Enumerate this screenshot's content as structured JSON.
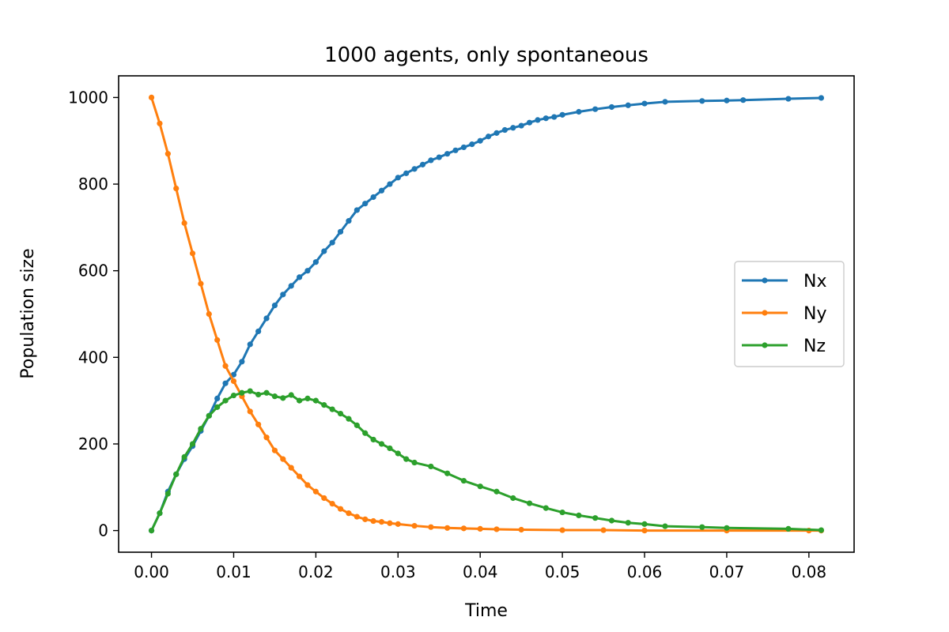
{
  "chart_data": {
    "type": "line",
    "title": "1000 agents, only spontaneous",
    "xlabel": "Time",
    "ylabel": "Population size",
    "xlim": [
      -0.004,
      0.0855
    ],
    "ylim": [
      -50,
      1050
    ],
    "xticks": [
      0.0,
      0.01,
      0.02,
      0.03,
      0.04,
      0.05,
      0.06,
      0.07,
      0.08
    ],
    "xtick_labels": [
      "0.00",
      "0.01",
      "0.02",
      "0.03",
      "0.04",
      "0.05",
      "0.06",
      "0.07",
      "0.08"
    ],
    "yticks": [
      0,
      200,
      400,
      600,
      800,
      1000
    ],
    "ytick_labels": [
      "0",
      "200",
      "400",
      "600",
      "800",
      "1000"
    ],
    "grid": false,
    "legend_position": "center-right",
    "series": [
      {
        "name": "Nx",
        "color": "#1f77b4",
        "x": [
          0.0,
          0.001,
          0.002,
          0.003,
          0.004,
          0.005,
          0.006,
          0.007,
          0.008,
          0.009,
          0.01,
          0.011,
          0.012,
          0.013,
          0.014,
          0.015,
          0.016,
          0.017,
          0.018,
          0.019,
          0.02,
          0.021,
          0.022,
          0.023,
          0.024,
          0.025,
          0.026,
          0.027,
          0.028,
          0.029,
          0.03,
          0.031,
          0.032,
          0.033,
          0.034,
          0.035,
          0.036,
          0.037,
          0.038,
          0.039,
          0.04,
          0.041,
          0.042,
          0.043,
          0.044,
          0.045,
          0.046,
          0.047,
          0.048,
          0.049,
          0.05,
          0.052,
          0.054,
          0.056,
          0.058,
          0.06,
          0.0625,
          0.067,
          0.07,
          0.072,
          0.0775,
          0.0815
        ],
        "y": [
          0,
          40,
          90,
          130,
          165,
          195,
          230,
          265,
          305,
          340,
          360,
          390,
          430,
          460,
          490,
          520,
          545,
          565,
          585,
          600,
          620,
          645,
          665,
          690,
          715,
          740,
          755,
          770,
          785,
          800,
          815,
          825,
          835,
          845,
          855,
          862,
          870,
          878,
          885,
          892,
          900,
          910,
          918,
          925,
          930,
          935,
          942,
          948,
          952,
          955,
          960,
          967,
          973,
          978,
          982,
          986,
          990,
          992,
          993,
          994,
          997,
          999
        ]
      },
      {
        "name": "Ny",
        "color": "#ff7f0e",
        "x": [
          0.0,
          0.001,
          0.002,
          0.003,
          0.004,
          0.005,
          0.006,
          0.007,
          0.008,
          0.009,
          0.01,
          0.011,
          0.012,
          0.013,
          0.014,
          0.015,
          0.016,
          0.017,
          0.018,
          0.019,
          0.02,
          0.021,
          0.022,
          0.023,
          0.024,
          0.025,
          0.026,
          0.027,
          0.028,
          0.029,
          0.03,
          0.032,
          0.034,
          0.036,
          0.038,
          0.04,
          0.042,
          0.045,
          0.05,
          0.055,
          0.06,
          0.07,
          0.08,
          0.0815
        ],
        "y": [
          1000,
          940,
          870,
          790,
          710,
          640,
          570,
          500,
          440,
          380,
          345,
          310,
          275,
          245,
          215,
          185,
          165,
          145,
          125,
          105,
          90,
          75,
          62,
          50,
          40,
          32,
          26,
          22,
          20,
          17,
          15,
          11,
          8,
          6,
          5,
          4,
          3,
          2,
          1,
          1,
          0,
          0,
          0,
          0
        ]
      },
      {
        "name": "Nz",
        "color": "#2ca02c",
        "x": [
          0.0,
          0.001,
          0.002,
          0.003,
          0.004,
          0.005,
          0.006,
          0.007,
          0.008,
          0.009,
          0.01,
          0.011,
          0.012,
          0.013,
          0.014,
          0.015,
          0.016,
          0.017,
          0.018,
          0.019,
          0.02,
          0.021,
          0.022,
          0.023,
          0.024,
          0.025,
          0.026,
          0.027,
          0.028,
          0.029,
          0.03,
          0.031,
          0.032,
          0.034,
          0.036,
          0.038,
          0.04,
          0.042,
          0.044,
          0.046,
          0.048,
          0.05,
          0.052,
          0.054,
          0.056,
          0.058,
          0.06,
          0.0625,
          0.067,
          0.07,
          0.0775,
          0.0815
        ],
        "y": [
          0,
          40,
          85,
          130,
          170,
          200,
          235,
          265,
          285,
          300,
          312,
          318,
          322,
          314,
          318,
          310,
          306,
          313,
          300,
          305,
          300,
          290,
          280,
          270,
          258,
          243,
          225,
          210,
          200,
          190,
          178,
          165,
          157,
          148,
          132,
          115,
          102,
          90,
          75,
          63,
          52,
          42,
          35,
          29,
          23,
          18,
          15,
          10,
          8,
          6,
          4,
          1
        ]
      }
    ]
  }
}
